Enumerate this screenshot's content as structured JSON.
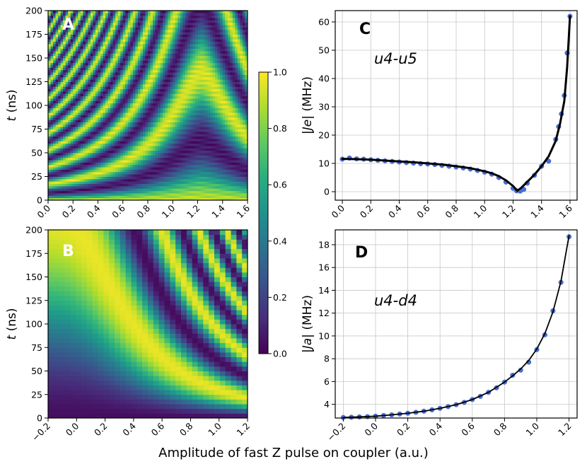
{
  "figure": {
    "xlabel_common": "Amplitude of fast Z pulse on coupler (a.u.)"
  },
  "colorbar": {
    "ticks": [
      "0.0",
      "0.2",
      "0.4",
      "0.6",
      "0.8",
      "1.0"
    ],
    "range": [
      0.0,
      1.0
    ],
    "colormap": "viridis"
  },
  "chart_data": [
    {
      "panel": "A",
      "type": "heatmap",
      "ylabel": "t (ns)",
      "xlim": [
        0.0,
        1.6
      ],
      "ylim": [
        0,
        200
      ],
      "xticks": [
        "0.0",
        "0.2",
        "0.4",
        "0.6",
        "0.8",
        "1.0",
        "1.2",
        "1.4",
        "1.6"
      ],
      "yticks": [
        "0",
        "25",
        "50",
        "75",
        "100",
        "125",
        "150",
        "175",
        "200"
      ],
      "description": "Oscillating population vs pulse amplitude and time; fringe frequency drops toward a minimum near amplitude 1.23 and rises sharply beyond it"
    },
    {
      "panel": "B",
      "type": "heatmap",
      "ylabel": "t (ns)",
      "xlim": [
        -0.2,
        1.2
      ],
      "ylim": [
        0,
        200
      ],
      "xticks": [
        "−0.2",
        "0.0",
        "0.2",
        "0.4",
        "0.6",
        "0.8",
        "1.0",
        "1.2"
      ],
      "yticks": [
        "0",
        "25",
        "50",
        "75",
        "100",
        "125",
        "150",
        "175",
        "200"
      ],
      "description": "Slow oscillation at low amplitude speeding up toward amplitude 1.2"
    },
    {
      "panel": "C",
      "type": "line",
      "annotation": "u4-u5",
      "ylabel": "|Je| (MHz)",
      "xlim": [
        -0.05,
        1.65
      ],
      "ylim": [
        -3,
        64
      ],
      "xticks": [
        "0.0",
        "0.2",
        "0.4",
        "0.6",
        "0.8",
        "1.0",
        "1.2",
        "1.4",
        "1.6"
      ],
      "yticks": [
        "0",
        "10",
        "20",
        "30",
        "40",
        "50",
        "60"
      ],
      "series": [
        {
          "name": "measured",
          "style": "points",
          "x": [
            0.0,
            0.05,
            0.1,
            0.15,
            0.2,
            0.25,
            0.3,
            0.35,
            0.4,
            0.45,
            0.5,
            0.55,
            0.6,
            0.65,
            0.7,
            0.75,
            0.8,
            0.85,
            0.9,
            0.95,
            1.0,
            1.05,
            1.1,
            1.15,
            1.2,
            1.225,
            1.25,
            1.275,
            1.3,
            1.35,
            1.4,
            1.45,
            1.5,
            1.52,
            1.54,
            1.56,
            1.58,
            1.6
          ],
          "y": [
            11.5,
            11.9,
            11.6,
            11.5,
            11.3,
            11.1,
            10.9,
            10.7,
            10.5,
            10.3,
            10.1,
            9.9,
            9.8,
            9.6,
            9.3,
            9.0,
            8.7,
            8.4,
            8.0,
            7.5,
            6.9,
            6.2,
            5.0,
            3.4,
            1.2,
            0.3,
            0.2,
            0.8,
            3.0,
            5.8,
            9.0,
            10.8,
            18.5,
            23.0,
            27.5,
            34.0,
            49.0,
            62.0
          ]
        },
        {
          "name": "fit",
          "style": "line",
          "x": [
            0.0,
            0.1,
            0.2,
            0.3,
            0.4,
            0.5,
            0.6,
            0.7,
            0.8,
            0.9,
            1.0,
            1.05,
            1.1,
            1.15,
            1.2,
            1.23,
            1.26,
            1.3,
            1.35,
            1.4,
            1.45,
            1.5,
            1.53,
            1.56,
            1.58,
            1.6
          ],
          "y": [
            11.6,
            11.5,
            11.3,
            11.0,
            10.7,
            10.4,
            10.0,
            9.6,
            9.0,
            8.3,
            7.2,
            6.5,
            5.5,
            4.0,
            2.0,
            0.3,
            1.5,
            3.5,
            6.0,
            9.0,
            12.5,
            18.0,
            24.0,
            32.0,
            44.0,
            62.0
          ]
        }
      ]
    },
    {
      "panel": "D",
      "type": "line",
      "annotation": "u4-d4",
      "ylabel": "|Ja| (MHz)",
      "xlim": [
        -0.25,
        1.25
      ],
      "ylim": [
        2.8,
        19.3
      ],
      "xticks": [
        "−0.2",
        "0.0",
        "0.2",
        "0.4",
        "0.6",
        "0.8",
        "1.0",
        "1.2"
      ],
      "yticks": [
        "4",
        "6",
        "8",
        "10",
        "12",
        "14",
        "16",
        "18"
      ],
      "series": [
        {
          "name": "measured",
          "style": "points",
          "x": [
            -0.2,
            -0.15,
            -0.1,
            -0.05,
            0.0,
            0.05,
            0.1,
            0.15,
            0.2,
            0.25,
            0.3,
            0.35,
            0.4,
            0.45,
            0.5,
            0.55,
            0.6,
            0.65,
            0.7,
            0.75,
            0.8,
            0.85,
            0.9,
            0.95,
            1.0,
            1.05,
            1.1,
            1.15,
            1.2
          ],
          "y": [
            2.85,
            2.87,
            2.9,
            2.92,
            2.96,
            3.02,
            3.08,
            3.15,
            3.22,
            3.3,
            3.4,
            3.52,
            3.65,
            3.8,
            3.97,
            4.17,
            4.42,
            4.7,
            5.05,
            5.45,
            5.95,
            6.55,
            7.0,
            7.7,
            8.8,
            10.1,
            12.2,
            14.7,
            18.7
          ]
        },
        {
          "name": "fit",
          "style": "line",
          "x": [
            -0.2,
            -0.1,
            0.0,
            0.1,
            0.2,
            0.3,
            0.4,
            0.5,
            0.6,
            0.7,
            0.8,
            0.85,
            0.9,
            0.95,
            1.0,
            1.05,
            1.1,
            1.15,
            1.2
          ],
          "y": [
            2.85,
            2.9,
            2.96,
            3.08,
            3.22,
            3.4,
            3.65,
            3.97,
            4.42,
            5.05,
            5.95,
            6.5,
            7.1,
            7.85,
            8.85,
            10.2,
            12.1,
            14.8,
            18.8
          ]
        }
      ]
    }
  ]
}
